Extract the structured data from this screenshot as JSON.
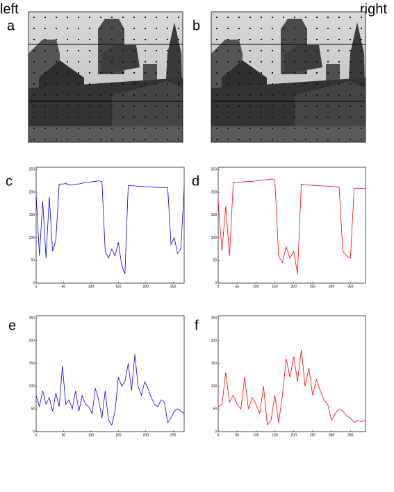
{
  "header": {
    "left": "left",
    "right": "right"
  },
  "images": [
    {
      "label": "a"
    },
    {
      "label": "b"
    }
  ],
  "chart_data": [
    {
      "type": "line",
      "label": "c",
      "x": [
        0,
        6,
        12,
        18,
        24,
        30,
        36,
        42,
        48,
        54,
        60,
        66,
        72,
        78,
        84,
        90,
        96,
        102,
        108,
        114,
        120,
        126,
        132,
        138,
        144,
        150,
        156,
        162,
        168,
        174,
        180,
        186,
        192,
        198,
        204,
        210,
        216,
        222,
        228,
        234,
        240,
        246,
        252,
        258,
        264,
        270
      ],
      "series": [
        {
          "color": "#0000ff",
          "values": [
            195,
            60,
            180,
            55,
            190,
            70,
            95,
            218,
            218,
            219,
            217,
            216,
            218,
            218,
            220,
            221,
            222,
            223,
            224,
            225,
            224,
            70,
            55,
            75,
            60,
            90,
            40,
            20,
            215,
            214,
            214,
            213,
            213,
            212,
            212,
            212,
            211,
            211,
            210,
            210,
            211,
            85,
            100,
            65,
            75,
            210
          ]
        }
      ],
      "xlim": [
        0,
        270
      ],
      "xticks": [
        0,
        50,
        100,
        150,
        200,
        250
      ],
      "ylim": [
        0,
        255
      ],
      "yticks": [
        0,
        50,
        100,
        150,
        200,
        250
      ]
    },
    {
      "type": "line",
      "label": "d",
      "x": [
        0,
        10,
        20,
        30,
        40,
        50,
        60,
        70,
        80,
        90,
        100,
        110,
        120,
        130,
        140,
        150,
        160,
        170,
        180,
        190,
        200,
        210,
        220,
        230,
        240,
        250,
        260,
        270,
        280,
        290,
        300,
        310,
        320,
        330,
        340,
        350,
        360,
        370,
        380,
        390
      ],
      "series": [
        {
          "color": "#ff0000",
          "values": [
            180,
            70,
            170,
            60,
            222,
            221,
            222,
            223,
            224,
            224,
            225,
            226,
            227,
            228,
            229,
            227,
            60,
            45,
            80,
            55,
            70,
            20,
            218,
            216,
            216,
            215,
            215,
            214,
            214,
            213,
            213,
            212,
            212,
            70,
            60,
            55,
            208,
            209,
            208,
            208
          ]
        }
      ],
      "xlim": [
        0,
        390
      ],
      "xticks": [
        0,
        50,
        100,
        150,
        200,
        250,
        300,
        350
      ],
      "ylim": [
        0,
        255
      ],
      "yticks": [
        0,
        50,
        100,
        150,
        200,
        250
      ]
    },
    {
      "type": "line",
      "label": "e",
      "x": [
        0,
        6,
        12,
        18,
        24,
        30,
        36,
        42,
        48,
        54,
        60,
        66,
        72,
        78,
        84,
        90,
        96,
        102,
        108,
        114,
        120,
        126,
        132,
        138,
        144,
        150,
        156,
        162,
        168,
        174,
        180,
        186,
        192,
        198,
        204,
        210,
        216,
        222,
        228,
        234,
        240,
        246,
        252,
        258,
        264,
        270
      ],
      "series": [
        {
          "color": "#0000ff",
          "values": [
            80,
            55,
            90,
            60,
            75,
            45,
            85,
            55,
            145,
            60,
            70,
            50,
            90,
            45,
            80,
            60,
            55,
            40,
            95,
            70,
            30,
            90,
            25,
            15,
            45,
            120,
            100,
            110,
            150,
            90,
            170,
            100,
            80,
            110,
            95,
            75,
            60,
            55,
            70,
            65,
            20,
            30,
            45,
            50,
            45,
            40
          ]
        }
      ],
      "xlim": [
        0,
        270
      ],
      "xticks": [
        0,
        50,
        100,
        150,
        200,
        250
      ],
      "ylim": [
        0,
        255
      ],
      "yticks": [
        0,
        50,
        100,
        150,
        200,
        250
      ]
    },
    {
      "type": "line",
      "label": "f",
      "x": [
        0,
        10,
        20,
        30,
        40,
        50,
        60,
        70,
        80,
        90,
        100,
        110,
        120,
        130,
        140,
        150,
        160,
        170,
        180,
        190,
        200,
        210,
        220,
        230,
        240,
        250,
        260,
        270,
        280,
        290,
        300,
        310,
        320,
        330,
        340,
        350,
        360,
        370,
        380,
        390
      ],
      "series": [
        {
          "color": "#ff0000",
          "values": [
            55,
            60,
            130,
            65,
            80,
            60,
            50,
            120,
            50,
            75,
            60,
            40,
            100,
            15,
            25,
            80,
            20,
            80,
            160,
            120,
            165,
            110,
            180,
            100,
            140,
            80,
            115,
            90,
            70,
            60,
            25,
            40,
            50,
            45,
            35,
            30,
            20,
            25,
            22,
            25
          ]
        }
      ],
      "xlim": [
        0,
        390
      ],
      "xticks": [
        0,
        50,
        100,
        150,
        200,
        250,
        300,
        350
      ],
      "ylim": [
        0,
        255
      ],
      "yticks": [
        0,
        50,
        100,
        150,
        200,
        250
      ]
    }
  ]
}
